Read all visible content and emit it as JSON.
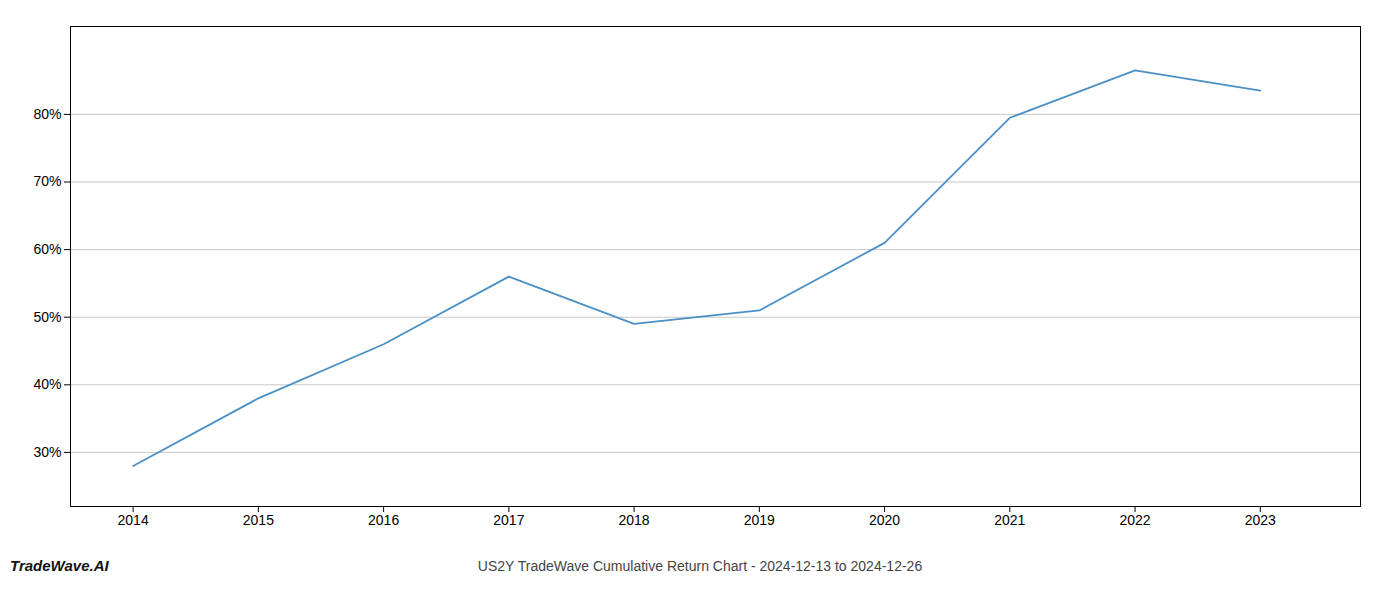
{
  "chart_data": {
    "type": "line",
    "title": "US2Y TradeWave Cumulative Return Chart - 2024-12-13 to 2024-12-26",
    "annotations": [
      "TradeWave.AI"
    ],
    "x": [
      2014,
      2015,
      2016,
      2017,
      2018,
      2019,
      2020,
      2021,
      2022,
      2023
    ],
    "values": [
      28.0,
      38.0,
      46.0,
      56.0,
      49.0,
      51.0,
      61.0,
      79.5,
      86.5,
      83.5
    ],
    "color": "#4a90c4",
    "xlim": [
      2013.5,
      2023.8
    ],
    "xticks": [
      2014,
      2015,
      2016,
      2017,
      2018,
      2019,
      2020,
      2021,
      2022,
      2023
    ],
    "ylim": [
      22,
      93
    ],
    "yticks": [
      {
        "value": 30,
        "label": "30%"
      },
      {
        "value": 40,
        "label": "40%"
      },
      {
        "value": 50,
        "label": "50%"
      },
      {
        "value": 60,
        "label": "60%"
      },
      {
        "value": 70,
        "label": "70%"
      },
      {
        "value": 80,
        "label": "80%"
      }
    ],
    "grid": "y"
  }
}
